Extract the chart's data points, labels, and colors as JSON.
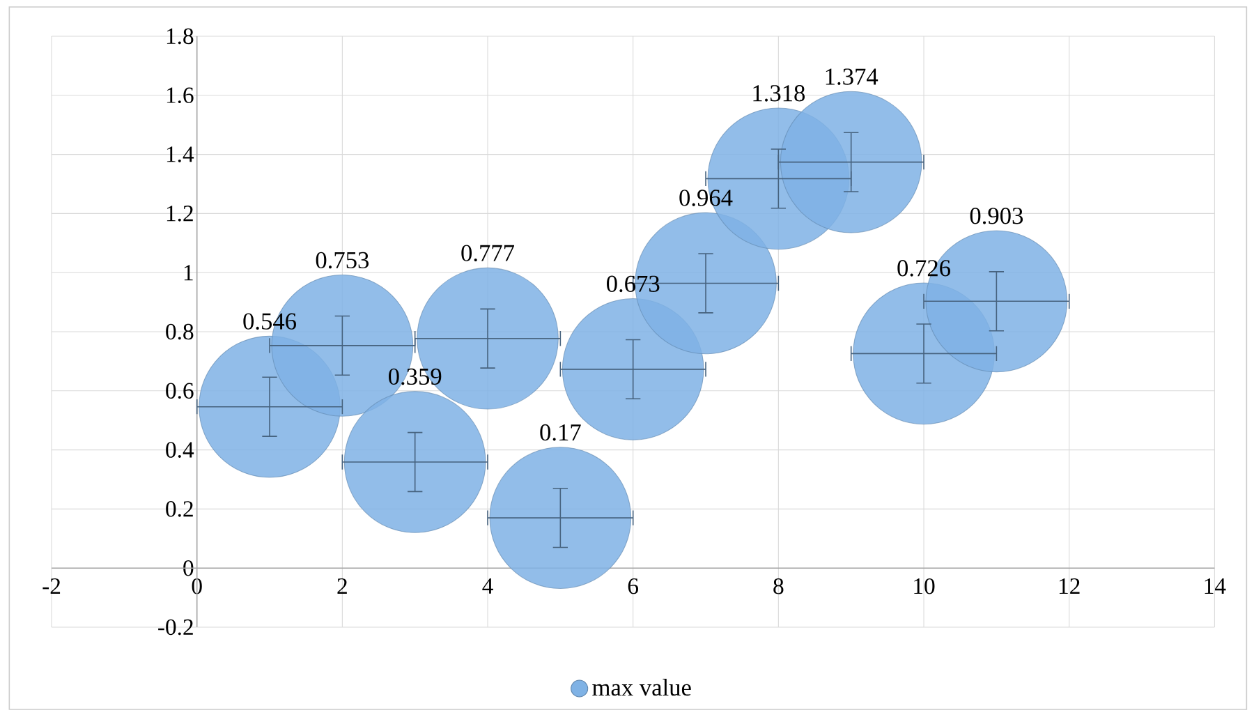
{
  "chart_data": {
    "type": "bubble",
    "xlim": [
      -2,
      14
    ],
    "ylim": [
      -0.2,
      1.8
    ],
    "xticks": [
      -2,
      0,
      2,
      4,
      6,
      8,
      10,
      12,
      14
    ],
    "yticks": [
      -0.2,
      0,
      0.2,
      0.4,
      0.6,
      0.8,
      1,
      1.2,
      1.4,
      1.6,
      1.8
    ],
    "grid": true,
    "legend": "bottom",
    "data_labels": true,
    "series": [
      {
        "name": "max value",
        "color": "#7fb2e5",
        "x": [
          1,
          2,
          3,
          4,
          5,
          6,
          7,
          8,
          9,
          10,
          11
        ],
        "values": [
          0.546,
          0.753,
          0.359,
          0.777,
          0.17,
          0.673,
          0.964,
          1.318,
          1.374,
          0.726,
          0.903
        ],
        "sizes": [
          1,
          1,
          1,
          1,
          1,
          1,
          1,
          1,
          1,
          1,
          1
        ],
        "errors": [
          0.1,
          0.1,
          0.1,
          0.1,
          0.1,
          0.1,
          0.1,
          0.1,
          0.1,
          0.1,
          0.1
        ],
        "xerrors": [
          1,
          1,
          1,
          1,
          1,
          1,
          1,
          1,
          1,
          1,
          1
        ]
      }
    ]
  }
}
